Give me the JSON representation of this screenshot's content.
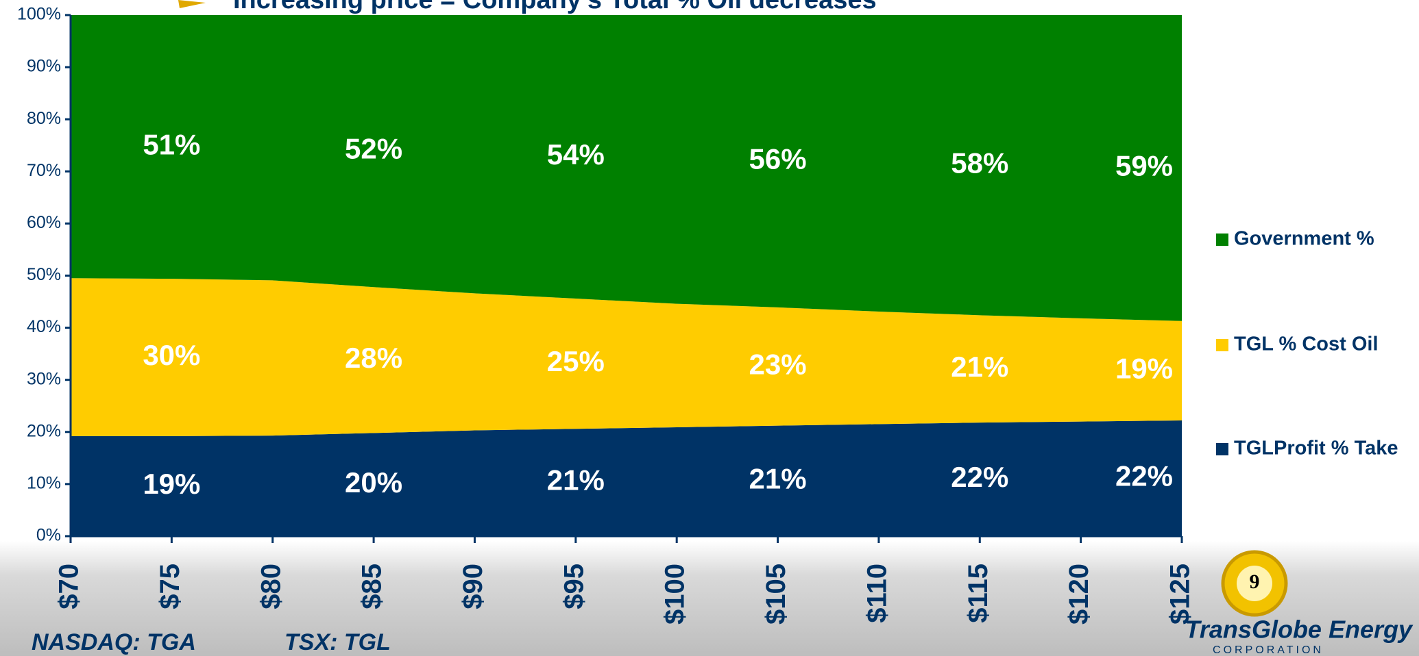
{
  "chart_data": {
    "type": "stacked_area",
    "title": "Increasing price = Company's Total % Oil decreases",
    "categories": [
      "$70",
      "$75",
      "$80",
      "$85",
      "$90",
      "$95",
      "$100",
      "$105",
      "$110",
      "$115",
      "$120",
      "$125"
    ],
    "series": [
      {
        "name": "TGLProfit % Take",
        "color": "#003366",
        "values": [
          19.2,
          19.2,
          19.3,
          19.8,
          20.3,
          20.6,
          20.9,
          21.2,
          21.5,
          21.8,
          22.0,
          22.2
        ],
        "value_labels": [
          null,
          "19%",
          null,
          "20%",
          null,
          "21%",
          null,
          "21%",
          null,
          "22%",
          null,
          "22%"
        ]
      },
      {
        "name": "TGL % Cost Oil",
        "color": "#ffcc00",
        "values": [
          30.3,
          30.2,
          29.8,
          28.0,
          26.3,
          25.0,
          23.7,
          22.7,
          21.6,
          20.6,
          19.8,
          19.1
        ],
        "value_labels": [
          null,
          "30%",
          null,
          "28%",
          null,
          "25%",
          null,
          "23%",
          null,
          "21%",
          null,
          "19%"
        ]
      },
      {
        "name": "Government %",
        "color": "#008000",
        "values": [
          50.5,
          50.6,
          50.9,
          52.2,
          53.4,
          54.4,
          55.4,
          56.1,
          56.9,
          57.6,
          58.2,
          58.7
        ],
        "value_labels": [
          null,
          "51%",
          null,
          "52%",
          null,
          "54%",
          null,
          "56%",
          null,
          "58%",
          null,
          "59%"
        ]
      }
    ],
    "ylim": [
      0,
      100
    ],
    "yticks": [
      {
        "value": 0,
        "label": "0%"
      },
      {
        "value": 10,
        "label": "10%"
      },
      {
        "value": 20,
        "label": "20%"
      },
      {
        "value": 30,
        "label": "30%"
      },
      {
        "value": 40,
        "label": "40%"
      },
      {
        "value": 50,
        "label": "50%"
      },
      {
        "value": 60,
        "label": "60%"
      },
      {
        "value": 70,
        "label": "70%"
      },
      {
        "value": 80,
        "label": "80%"
      },
      {
        "value": 90,
        "label": "90%"
      },
      {
        "value": 100,
        "label": "100%"
      }
    ],
    "legend": "right"
  },
  "footer": {
    "left": "NASDAQ: TGA",
    "middle": "TSX: TGL",
    "page": "9",
    "logo": "TransGlobe Energy",
    "logo_sub": "CORPORATION"
  }
}
